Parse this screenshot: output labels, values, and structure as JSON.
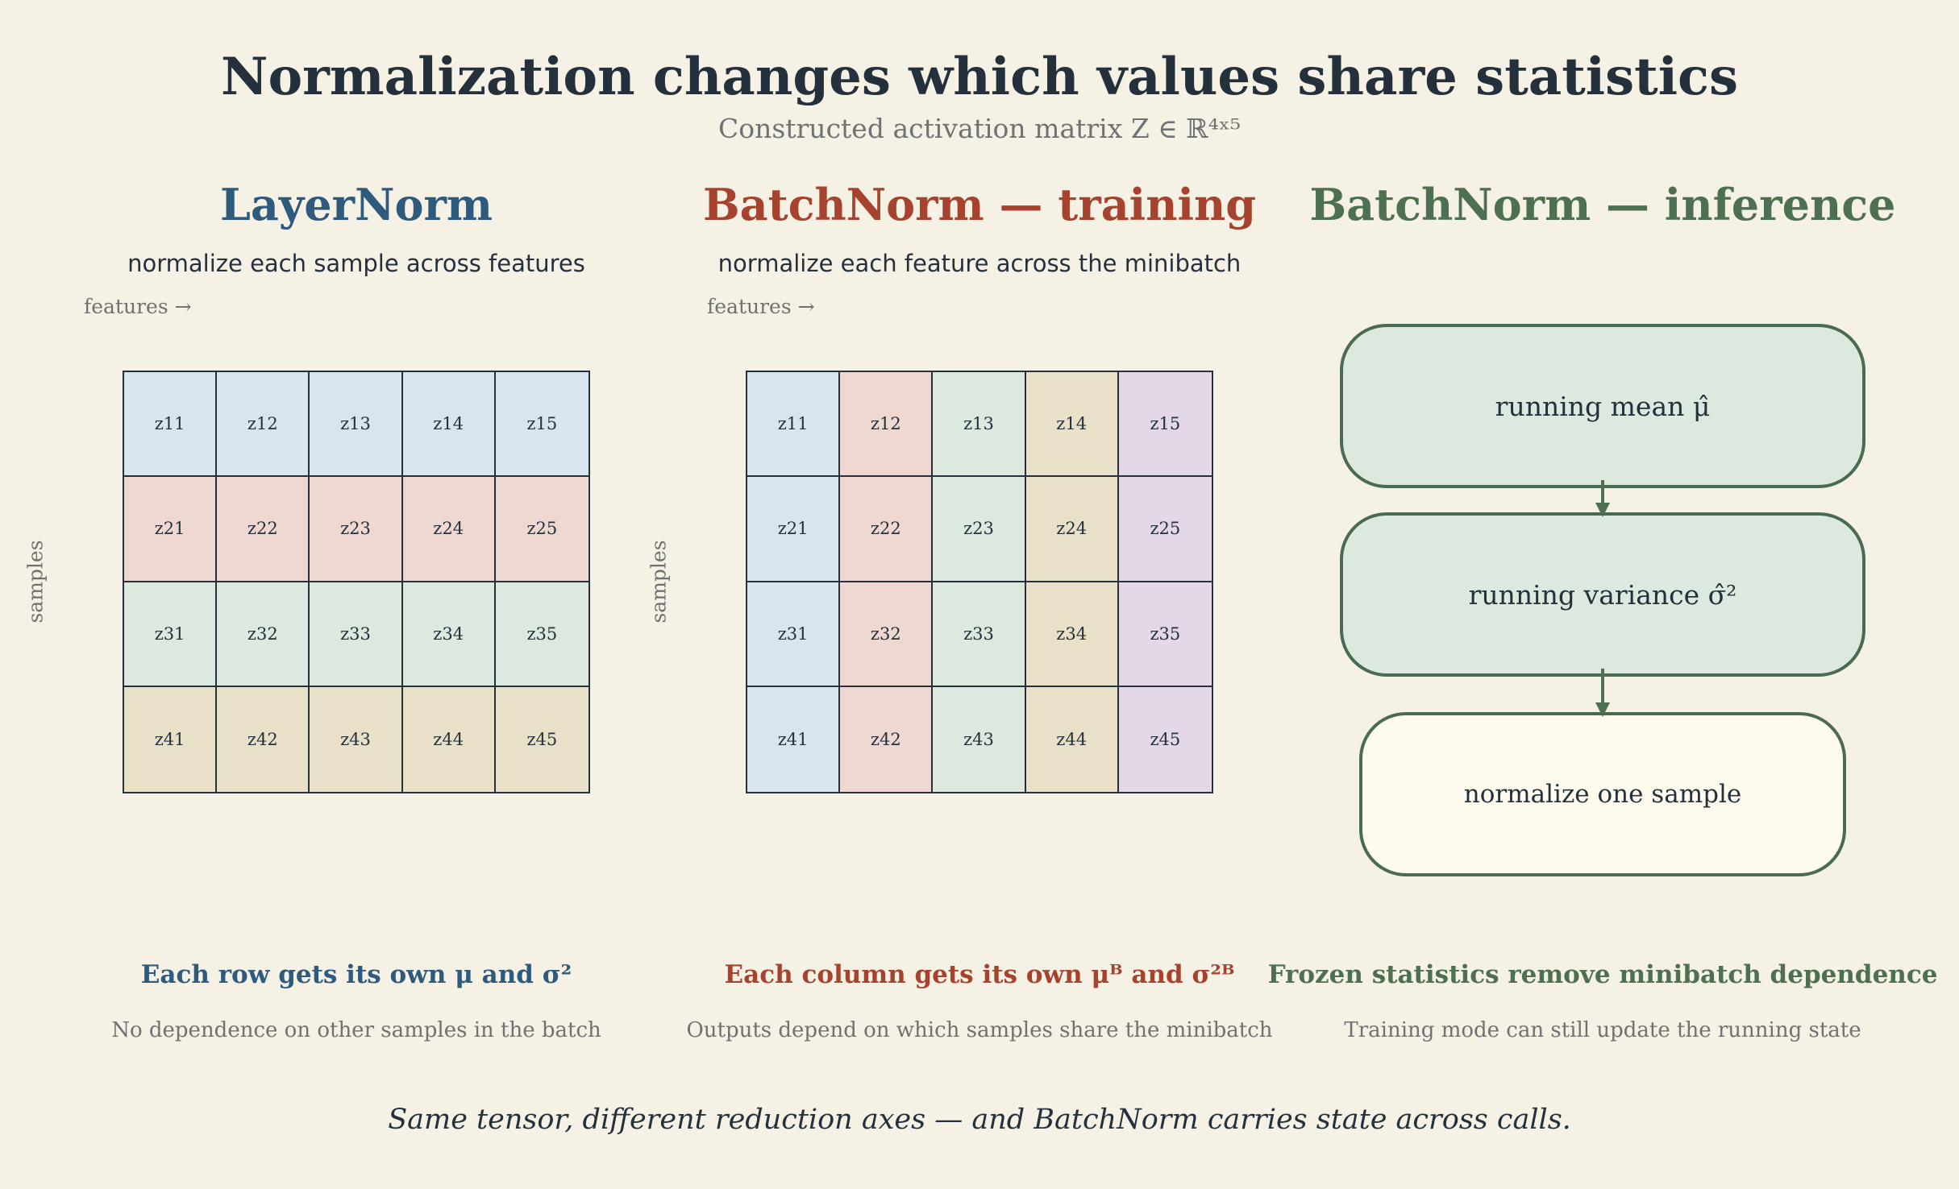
{
  "header": {
    "title": "Normalization changes which values share statistics",
    "subtitle": "Constructed activation matrix Z ∈ ℝ⁴ˣ⁵"
  },
  "colors": {
    "background": "#f6f1e5",
    "layernorm_accent": "#2e5a7e",
    "batchnorm_train_accent": "#a6432f",
    "batchnorm_infer_accent": "#4c7050",
    "row_fills": [
      "#d8e5ec",
      "#efd8d1",
      "#dde8de",
      "#e8e0c7"
    ],
    "col_fills": [
      "#d8e5ec",
      "#efd8d1",
      "#dde8de",
      "#e8e0c7",
      "#e4d8e7"
    ]
  },
  "matrix": {
    "cells": [
      [
        "z11",
        "z12",
        "z13",
        "z14",
        "z15"
      ],
      [
        "z21",
        "z22",
        "z23",
        "z24",
        "z25"
      ],
      [
        "z31",
        "z32",
        "z33",
        "z34",
        "z35"
      ],
      [
        "z41",
        "z42",
        "z43",
        "z44",
        "z45"
      ]
    ]
  },
  "panels": {
    "layernorm": {
      "title": "LayerNorm",
      "subtitle": "normalize each sample across features",
      "features_label": "features →",
      "samples_label": "samples",
      "caption": "Each row gets its own μ and σ²",
      "note": "No dependence on other samples in the batch"
    },
    "batchnorm_training": {
      "title": "BatchNorm — training",
      "subtitle": "normalize each feature across the minibatch",
      "features_label": "features →",
      "samples_label": "samples",
      "caption": "Each column gets its own μᴮ and σ²ᴮ",
      "note": "Outputs depend on which samples share the minibatch"
    },
    "batchnorm_inference": {
      "title": "BatchNorm — inference",
      "nodes": {
        "running_mean": "running mean  μ̂",
        "running_variance": "running variance  σ̂²",
        "normalize": "normalize one sample"
      },
      "caption": "Frozen statistics remove minibatch dependence",
      "note": "Training mode can still update the running state"
    }
  },
  "footer": "Same tensor, different reduction axes — and BatchNorm carries state across calls."
}
